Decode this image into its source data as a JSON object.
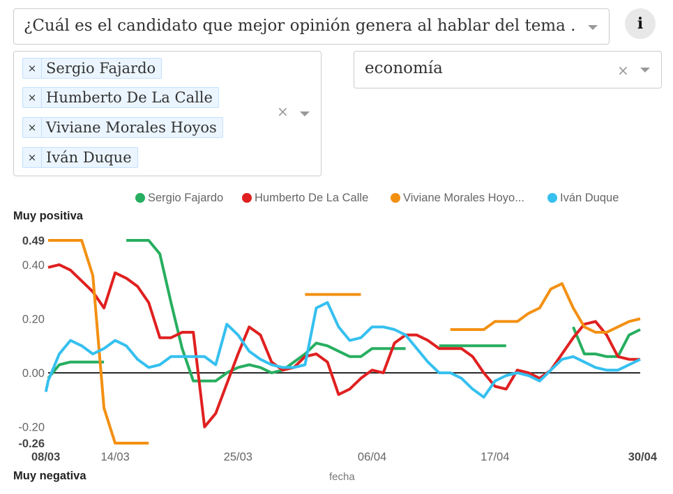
{
  "filters": {
    "question": "¿Cuál es el candidato que mejor opinión genera al hablar del tema ...",
    "selected_candidates": [
      "Sergio Fajardo",
      "Humberto De La Calle",
      "Viviane Morales Hoyos",
      "Iván Duque"
    ],
    "topic": "economía",
    "chip_remove": "×",
    "clear_symbol": "×",
    "info_label": "i"
  },
  "chart_data": {
    "type": "line",
    "title": "",
    "xlabel": "fecha",
    "ylabel_top": "Muy positiva",
    "ylabel_bottom": "Muy negativa",
    "ylim": [
      -0.26,
      0.49
    ],
    "y_ticks": [
      {
        "value": 0.49,
        "label": "0.49",
        "bold": true
      },
      {
        "value": 0.4,
        "label": "0.40",
        "bold": false
      },
      {
        "value": 0.2,
        "label": "0.20",
        "bold": false
      },
      {
        "value": 0.0,
        "label": "0.00",
        "bold": false
      },
      {
        "value": -0.2,
        "label": "-0.20",
        "bold": false
      },
      {
        "value": -0.26,
        "label": "-0.26",
        "bold": true
      }
    ],
    "x_ticks": [
      {
        "day": 0,
        "label": "08/03",
        "bold": true
      },
      {
        "day": 6,
        "label": "14/03",
        "bold": false
      },
      {
        "day": 17,
        "label": "25/03",
        "bold": false
      },
      {
        "day": 29,
        "label": "06/04",
        "bold": false
      },
      {
        "day": 40,
        "label": "17/04",
        "bold": false
      },
      {
        "day": 53,
        "label": "30/04",
        "bold": true
      }
    ],
    "legend_labels": [
      "Sergio Fajardo",
      "Humberto De La Calle",
      "Viviane Morales Hoyo...",
      "Iván Duque"
    ],
    "zero_line": true,
    "series": [
      {
        "name": "Sergio Fajardo",
        "color": "#27ae60",
        "segments": [
          [
            [
              0,
              -0.02
            ],
            [
              1,
              0.03
            ],
            [
              2,
              0.04
            ],
            [
              3,
              0.04
            ],
            [
              4,
              0.04
            ],
            [
              5,
              0.04
            ]
          ],
          [
            [
              7,
              0.49
            ],
            [
              8,
              0.49
            ],
            [
              9,
              0.49
            ],
            [
              10,
              0.44
            ],
            [
              11,
              0.26
            ],
            [
              12,
              0.09
            ],
            [
              13,
              -0.03
            ],
            [
              14,
              -0.03
            ],
            [
              15,
              -0.03
            ],
            [
              16,
              0.0
            ],
            [
              17,
              0.02
            ],
            [
              18,
              0.03
            ],
            [
              19,
              0.02
            ],
            [
              20,
              0.0
            ],
            [
              21,
              0.01
            ],
            [
              22,
              0.04
            ],
            [
              23,
              0.07
            ],
            [
              24,
              0.11
            ],
            [
              25,
              0.1
            ],
            [
              26,
              0.08
            ],
            [
              27,
              0.06
            ],
            [
              28,
              0.06
            ],
            [
              29,
              0.09
            ],
            [
              30,
              0.09
            ],
            [
              31,
              0.09
            ],
            [
              32,
              0.09
            ]
          ],
          [
            [
              35,
              0.1
            ],
            [
              36,
              0.1
            ],
            [
              37,
              0.1
            ],
            [
              38,
              0.1
            ],
            [
              39,
              0.1
            ],
            [
              40,
              0.1
            ],
            [
              41,
              0.1
            ]
          ],
          [
            [
              47,
              0.17
            ],
            [
              48,
              0.07
            ],
            [
              49,
              0.07
            ],
            [
              50,
              0.06
            ],
            [
              51,
              0.06
            ],
            [
              52,
              0.14
            ],
            [
              53,
              0.16
            ]
          ]
        ]
      },
      {
        "name": "Humberto De La Calle",
        "color": "#e02020",
        "segments": [
          [
            [
              0,
              0.39
            ],
            [
              1,
              0.4
            ],
            [
              2,
              0.38
            ],
            [
              3,
              0.34
            ],
            [
              4,
              0.3
            ],
            [
              5,
              0.24
            ],
            [
              6,
              0.37
            ],
            [
              7,
              0.35
            ],
            [
              8,
              0.32
            ],
            [
              9,
              0.26
            ],
            [
              10,
              0.13
            ],
            [
              11,
              0.13
            ],
            [
              12,
              0.15
            ],
            [
              13,
              0.15
            ],
            [
              14,
              -0.2
            ],
            [
              15,
              -0.15
            ],
            [
              16,
              -0.04
            ],
            [
              17,
              0.07
            ],
            [
              18,
              0.17
            ],
            [
              19,
              0.14
            ],
            [
              20,
              0.04
            ],
            [
              21,
              0.01
            ],
            [
              22,
              0.02
            ],
            [
              23,
              0.06
            ],
            [
              24,
              0.07
            ],
            [
              25,
              0.04
            ],
            [
              26,
              -0.08
            ],
            [
              27,
              -0.06
            ],
            [
              28,
              -0.02
            ],
            [
              29,
              0.01
            ],
            [
              30,
              0.0
            ],
            [
              31,
              0.11
            ],
            [
              32,
              0.14
            ],
            [
              33,
              0.14
            ],
            [
              34,
              0.12
            ],
            [
              35,
              0.09
            ],
            [
              36,
              0.09
            ],
            [
              37,
              0.09
            ],
            [
              38,
              0.06
            ],
            [
              39,
              0.0
            ],
            [
              40,
              -0.05
            ],
            [
              41,
              -0.06
            ],
            [
              42,
              0.01
            ],
            [
              43,
              0.0
            ],
            [
              44,
              -0.02
            ],
            [
              45,
              0.01
            ],
            [
              46,
              0.07
            ],
            [
              47,
              0.13
            ],
            [
              48,
              0.18
            ],
            [
              49,
              0.19
            ],
            [
              50,
              0.14
            ],
            [
              51,
              0.06
            ],
            [
              52,
              0.05
            ],
            [
              53,
              0.05
            ]
          ]
        ]
      },
      {
        "name": "Viviane Morales Hoyos",
        "color": "#f39012",
        "segments": [
          [
            [
              0,
              0.49
            ],
            [
              1,
              0.49
            ],
            [
              2,
              0.49
            ],
            [
              3,
              0.49
            ],
            [
              4,
              0.36
            ],
            [
              5,
              -0.13
            ],
            [
              6,
              -0.26
            ],
            [
              7,
              -0.26
            ],
            [
              8,
              -0.26
            ],
            [
              9,
              -0.26
            ]
          ],
          [
            [
              23,
              0.29
            ],
            [
              24,
              0.29
            ],
            [
              25,
              0.29
            ],
            [
              26,
              0.29
            ],
            [
              27,
              0.29
            ],
            [
              28,
              0.29
            ]
          ],
          [
            [
              36,
              0.16
            ],
            [
              37,
              0.16
            ],
            [
              38,
              0.16
            ],
            [
              39,
              0.16
            ],
            [
              40,
              0.19
            ],
            [
              41,
              0.19
            ],
            [
              42,
              0.19
            ],
            [
              43,
              0.22
            ],
            [
              44,
              0.24
            ],
            [
              45,
              0.31
            ],
            [
              46,
              0.33
            ],
            [
              47,
              0.24
            ],
            [
              48,
              0.17
            ],
            [
              49,
              0.15
            ],
            [
              50,
              0.15
            ],
            [
              51,
              0.17
            ],
            [
              52,
              0.19
            ],
            [
              53,
              0.2
            ]
          ]
        ]
      },
      {
        "name": "Iván Duque",
        "color": "#35c0ef",
        "segments": [
          [
            [
              -0.2,
              -0.07
            ],
            [
              0,
              -0.03
            ],
            [
              1,
              0.07
            ],
            [
              2,
              0.12
            ],
            [
              3,
              0.1
            ],
            [
              4,
              0.07
            ],
            [
              5,
              0.09
            ],
            [
              6,
              0.12
            ],
            [
              7,
              0.1
            ],
            [
              8,
              0.05
            ],
            [
              9,
              0.02
            ],
            [
              10,
              0.03
            ],
            [
              11,
              0.06
            ],
            [
              12,
              0.06
            ],
            [
              13,
              0.06
            ],
            [
              14,
              0.06
            ],
            [
              15,
              0.03
            ],
            [
              16,
              0.18
            ],
            [
              17,
              0.14
            ],
            [
              18,
              0.08
            ],
            [
              19,
              0.05
            ],
            [
              20,
              0.03
            ],
            [
              21,
              0.02
            ],
            [
              22,
              0.02
            ],
            [
              23,
              0.03
            ],
            [
              24,
              0.24
            ],
            [
              25,
              0.26
            ],
            [
              26,
              0.17
            ],
            [
              27,
              0.12
            ],
            [
              28,
              0.13
            ],
            [
              29,
              0.17
            ],
            [
              30,
              0.17
            ],
            [
              31,
              0.16
            ],
            [
              32,
              0.14
            ],
            [
              33,
              0.09
            ],
            [
              34,
              0.04
            ],
            [
              35,
              0.0
            ],
            [
              36,
              0.0
            ],
            [
              37,
              -0.02
            ],
            [
              38,
              -0.06
            ],
            [
              39,
              -0.09
            ],
            [
              40,
              -0.03
            ],
            [
              41,
              -0.01
            ],
            [
              42,
              0.0
            ],
            [
              43,
              -0.01
            ],
            [
              44,
              -0.03
            ],
            [
              45,
              0.01
            ],
            [
              46,
              0.05
            ],
            [
              47,
              0.06
            ],
            [
              48,
              0.04
            ],
            [
              49,
              0.02
            ],
            [
              50,
              0.01
            ],
            [
              51,
              0.01
            ],
            [
              52,
              0.03
            ],
            [
              53,
              0.05
            ]
          ]
        ]
      }
    ]
  }
}
